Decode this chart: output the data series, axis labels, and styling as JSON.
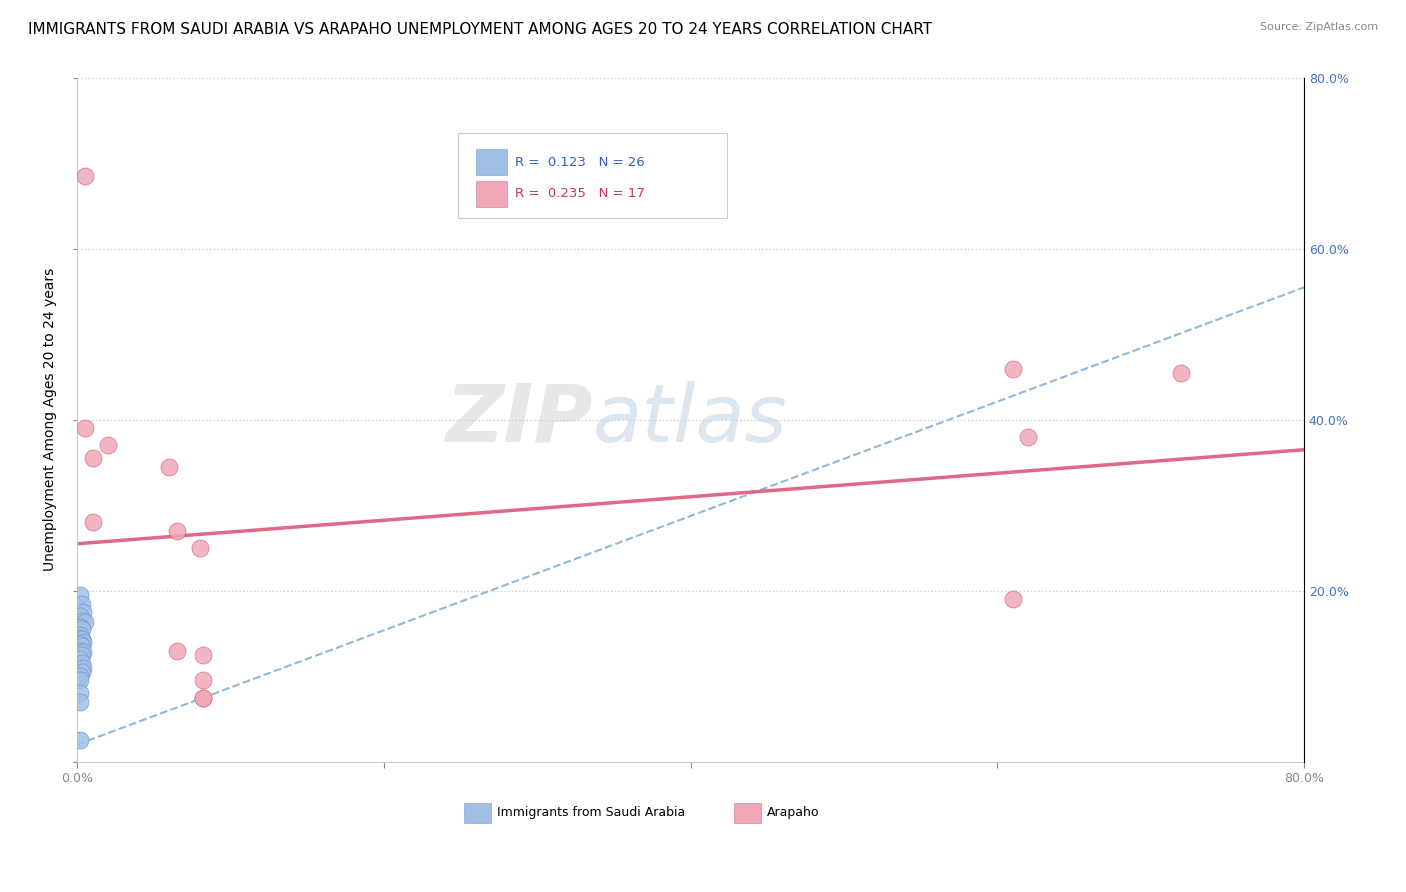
{
  "title": "IMMIGRANTS FROM SAUDI ARABIA VS ARAPAHO UNEMPLOYMENT AMONG AGES 20 TO 24 YEARS CORRELATION CHART",
  "source": "Source: ZipAtlas.com",
  "ylabel": "Unemployment Among Ages 20 to 24 years",
  "xlim": [
    0,
    0.8
  ],
  "ylim": [
    0,
    0.8
  ],
  "xtick_positions": [
    0.0,
    0.2,
    0.4,
    0.6,
    0.8
  ],
  "ytick_positions": [
    0.0,
    0.2,
    0.4,
    0.6,
    0.8
  ],
  "background_color": "#ffffff",
  "watermark": "ZIPatlas",
  "blue_series": {
    "label": "Immigrants from Saudi Arabia",
    "R": "0.123",
    "N": "26",
    "color": "#a0c0e8",
    "edge_color": "#7090c0",
    "x": [
      0.002,
      0.003,
      0.004,
      0.002,
      0.003,
      0.005,
      0.002,
      0.003,
      0.002,
      0.001,
      0.003,
      0.004,
      0.002,
      0.003,
      0.002,
      0.004,
      0.003,
      0.002,
      0.003,
      0.004,
      0.003,
      0.002,
      0.002,
      0.002,
      0.002,
      0.002
    ],
    "y": [
      0.195,
      0.185,
      0.175,
      0.17,
      0.165,
      0.163,
      0.158,
      0.155,
      0.148,
      0.145,
      0.143,
      0.14,
      0.138,
      0.135,
      0.13,
      0.128,
      0.125,
      0.12,
      0.115,
      0.11,
      0.105,
      0.1,
      0.095,
      0.08,
      0.07,
      0.025
    ]
  },
  "pink_series": {
    "label": "Arapaho",
    "R": "0.235",
    "N": "17",
    "color": "#f0a8b8",
    "edge_color": "#d06080",
    "x": [
      0.005,
      0.005,
      0.02,
      0.01,
      0.01,
      0.06,
      0.065,
      0.065,
      0.61,
      0.62,
      0.61,
      0.72,
      0.08,
      0.082,
      0.082,
      0.082,
      0.082
    ],
    "y": [
      0.685,
      0.39,
      0.37,
      0.355,
      0.28,
      0.345,
      0.27,
      0.13,
      0.46,
      0.38,
      0.19,
      0.455,
      0.25,
      0.125,
      0.095,
      0.075,
      0.075
    ]
  },
  "blue_trend": {
    "x_start": 0.0,
    "x_end": 0.8,
    "y_start": 0.02,
    "y_end": 0.555,
    "color": "#90b8d8",
    "linestyle": "dashed",
    "linewidth": 1.5
  },
  "pink_trend": {
    "x_start": 0.0,
    "x_end": 0.8,
    "y_start": 0.255,
    "y_end": 0.365,
    "color": "#e06888",
    "linestyle": "solid",
    "linewidth": 2.5
  },
  "legend_R_color_blue": "#3060c0",
  "legend_N_color_blue": "#3060c0",
  "legend_R_color_pink": "#d03060",
  "legend_N_color_pink": "#d03060",
  "title_fontsize": 11,
  "axis_label_fontsize": 10,
  "tick_fontsize": 9,
  "right_tick_color": "#4472c4"
}
